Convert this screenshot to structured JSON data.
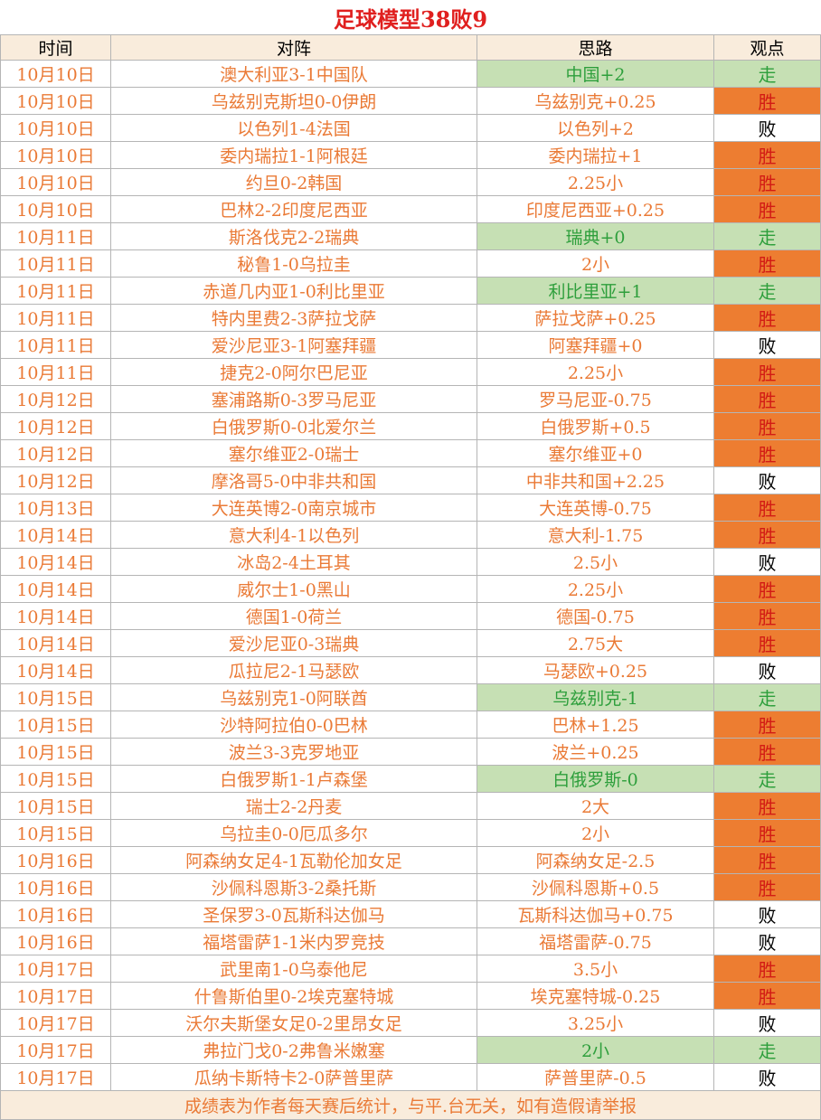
{
  "title": "足球模型38败9",
  "headers": {
    "date": "时间",
    "match": "对阵",
    "strategy": "思路",
    "verdict": "观点"
  },
  "rows": [
    {
      "date": "10月10日",
      "match": "澳大利亚3-1中国队",
      "strategy": "中国+2",
      "verdict": "走"
    },
    {
      "date": "10月10日",
      "match": "乌兹别克斯坦0-0伊朗",
      "strategy": "乌兹别克+0.25",
      "verdict": "胜"
    },
    {
      "date": "10月10日",
      "match": "以色列1-4法国",
      "strategy": "以色列+2",
      "verdict": "败"
    },
    {
      "date": "10月10日",
      "match": "委内瑞拉1-1阿根廷",
      "strategy": "委内瑞拉+1",
      "verdict": "胜"
    },
    {
      "date": "10月10日",
      "match": "约旦0-2韩国",
      "strategy": "2.25小",
      "verdict": "胜"
    },
    {
      "date": "10月10日",
      "match": "巴林2-2印度尼西亚",
      "strategy": "印度尼西亚+0.25",
      "verdict": "胜"
    },
    {
      "date": "10月11日",
      "match": "斯洛伐克2-2瑞典",
      "strategy": "瑞典+0",
      "verdict": "走"
    },
    {
      "date": "10月11日",
      "match": "秘鲁1-0乌拉圭",
      "strategy": "2小",
      "verdict": "胜"
    },
    {
      "date": "10月11日",
      "match": "赤道几内亚1-0利比里亚",
      "strategy": "利比里亚+1",
      "verdict": "走"
    },
    {
      "date": "10月11日",
      "match": "特内里费2-3萨拉戈萨",
      "strategy": "萨拉戈萨+0.25",
      "verdict": "胜"
    },
    {
      "date": "10月11日",
      "match": "爱沙尼亚3-1阿塞拜疆",
      "strategy": "阿塞拜疆+0",
      "verdict": "败"
    },
    {
      "date": "10月11日",
      "match": "捷克2-0阿尔巴尼亚",
      "strategy": "2.25小",
      "verdict": "胜"
    },
    {
      "date": "10月12日",
      "match": "塞浦路斯0-3罗马尼亚",
      "strategy": "罗马尼亚-0.75",
      "verdict": "胜"
    },
    {
      "date": "10月12日",
      "match": "白俄罗斯0-0北爱尔兰",
      "strategy": "白俄罗斯+0.5",
      "verdict": "胜"
    },
    {
      "date": "10月12日",
      "match": "塞尔维亚2-0瑞士",
      "strategy": "塞尔维亚+0",
      "verdict": "胜"
    },
    {
      "date": "10月12日",
      "match": "摩洛哥5-0中非共和国",
      "strategy": "中非共和国+2.25",
      "verdict": "败"
    },
    {
      "date": "10月13日",
      "match": "大连英博2-0南京城市",
      "strategy": "大连英博-0.75",
      "verdict": "胜"
    },
    {
      "date": "10月14日",
      "match": "意大利4-1以色列",
      "strategy": "意大利-1.75",
      "verdict": "胜"
    },
    {
      "date": "10月14日",
      "match": "冰岛2-4土耳其",
      "strategy": "2.5小",
      "verdict": "败"
    },
    {
      "date": "10月14日",
      "match": "威尔士1-0黑山",
      "strategy": "2.25小",
      "verdict": "胜"
    },
    {
      "date": "10月14日",
      "match": "德国1-0荷兰",
      "strategy": "德国-0.75",
      "verdict": "胜"
    },
    {
      "date": "10月14日",
      "match": "爱沙尼亚0-3瑞典",
      "strategy": "2.75大",
      "verdict": "胜"
    },
    {
      "date": "10月14日",
      "match": "瓜拉尼2-1马瑟欧",
      "strategy": "马瑟欧+0.25",
      "verdict": "败"
    },
    {
      "date": "10月15日",
      "match": "乌兹别克1-0阿联酋",
      "strategy": "乌兹别克-1",
      "verdict": "走"
    },
    {
      "date": "10月15日",
      "match": "沙特阿拉伯0-0巴林",
      "strategy": "巴林+1.25",
      "verdict": "胜"
    },
    {
      "date": "10月15日",
      "match": "波兰3-3克罗地亚",
      "strategy": "波兰+0.25",
      "verdict": "胜"
    },
    {
      "date": "10月15日",
      "match": "白俄罗斯1-1卢森堡",
      "strategy": "白俄罗斯-0",
      "verdict": "走"
    },
    {
      "date": "10月15日",
      "match": "瑞士2-2丹麦",
      "strategy": "2大",
      "verdict": "胜"
    },
    {
      "date": "10月15日",
      "match": "乌拉圭0-0厄瓜多尔",
      "strategy": "2小",
      "verdict": "胜"
    },
    {
      "date": "10月16日",
      "match": "阿森纳女足4-1瓦勒伦加女足",
      "strategy": "阿森纳女足-2.5",
      "verdict": "胜"
    },
    {
      "date": "10月16日",
      "match": "沙佩科恩斯3-2桑托斯",
      "strategy": "沙佩科恩斯+0.5",
      "verdict": "胜"
    },
    {
      "date": "10月16日",
      "match": "圣保罗3-0瓦斯科达伽马",
      "strategy": "瓦斯科达伽马+0.75",
      "verdict": "败"
    },
    {
      "date": "10月16日",
      "match": "福塔雷萨1-1米内罗竞技",
      "strategy": "福塔雷萨-0.75",
      "verdict": "败"
    },
    {
      "date": "10月17日",
      "match": "武里南1-0乌泰他尼",
      "strategy": "3.5小",
      "verdict": "胜"
    },
    {
      "date": "10月17日",
      "match": "什鲁斯伯里0-2埃克塞特城",
      "strategy": "埃克塞特城-0.25",
      "verdict": "胜"
    },
    {
      "date": "10月17日",
      "match": "沃尔夫斯堡女足0-2里昂女足",
      "strategy": "3.25小",
      "verdict": "败"
    },
    {
      "date": "10月17日",
      "match": "弗拉门戈0-2弗鲁米嫩塞",
      "strategy": "2小",
      "verdict": "走"
    },
    {
      "date": "10月17日",
      "match": "瓜纳卡斯特卡2-0萨普里萨",
      "strategy": "萨普里萨-0.5",
      "verdict": "败"
    }
  ],
  "footer": "成绩表为作者每天赛后统计，与平.台无关，如有造假请举报",
  "colors": {
    "win_bg": "#ed7d31",
    "win_text": "#d21b14",
    "push_bg": "#c6e0b4",
    "push_text": "#2e9f3c",
    "lose_text": "#000000",
    "orange_text": "#ea7a36",
    "title": "#e0201f"
  }
}
